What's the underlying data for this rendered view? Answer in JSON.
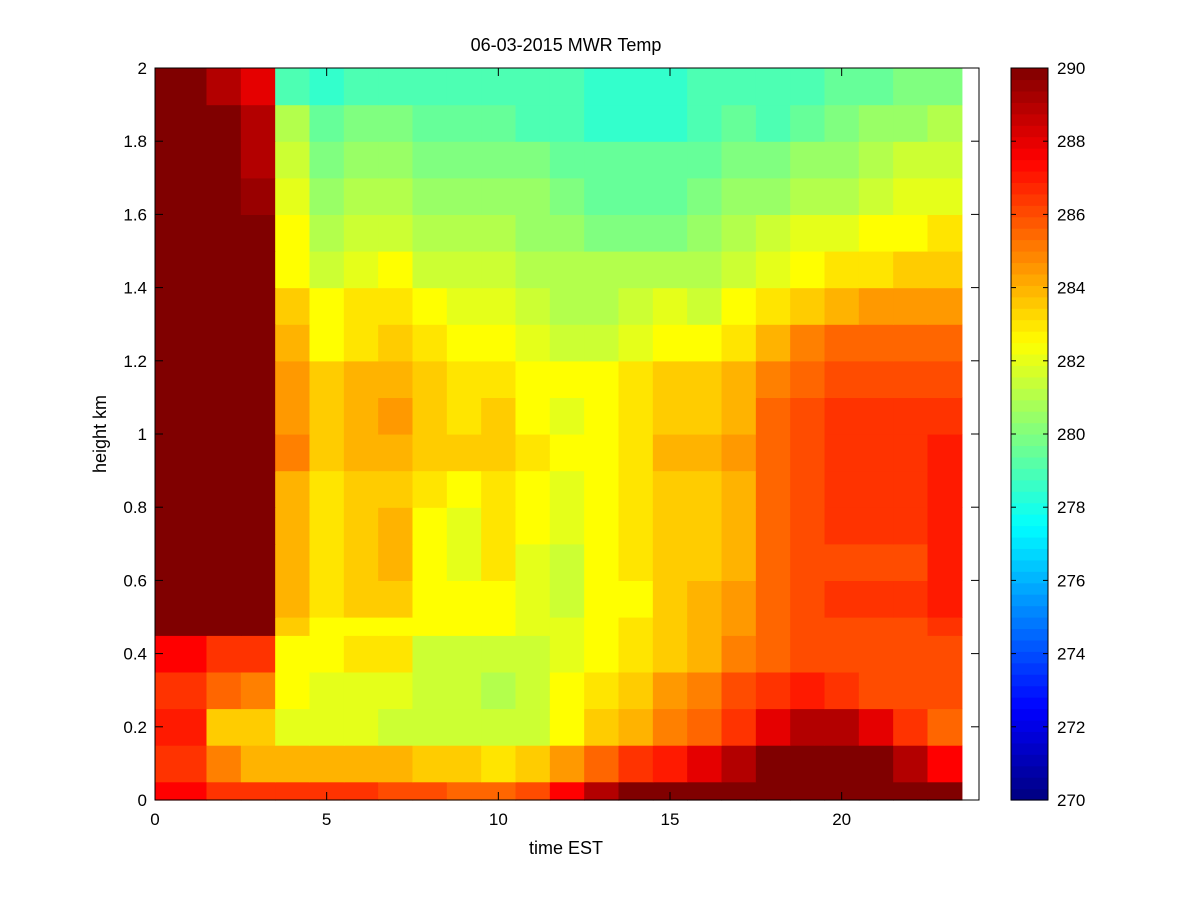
{
  "chart_data": {
    "type": "heatmap",
    "title": "06-03-2015 MWR Temp",
    "xlabel": "time EST",
    "ylabel": "height km",
    "xlim": [
      0,
      24
    ],
    "ylim": [
      0,
      2
    ],
    "colorbar": {
      "min": 270,
      "max": 290,
      "colormap": "jet",
      "ticks": [
        270,
        272,
        274,
        276,
        278,
        280,
        282,
        284,
        286,
        288,
        290
      ],
      "tick_labels": [
        "270",
        "272",
        "274",
        "276",
        "278",
        "280",
        "282",
        "284",
        "286",
        "288",
        "290"
      ]
    },
    "x_ticks": [
      0,
      5,
      10,
      15,
      20
    ],
    "x_tick_labels": [
      "0",
      "5",
      "10",
      "15",
      "20"
    ],
    "y_ticks": [
      0,
      0.2,
      0.4,
      0.6,
      0.8,
      1,
      1.2,
      1.4,
      1.6,
      1.8,
      2
    ],
    "y_tick_labels": [
      "0",
      "0.2",
      "0.4",
      "0.6",
      "0.8",
      "1",
      "1.2",
      "1.4",
      "1.6",
      "1.8",
      "2"
    ],
    "x_edges": [
      0,
      1.5,
      2.5,
      3.5,
      4.5,
      5.5,
      6.5,
      7.5,
      8.5,
      9.5,
      10.5,
      11.5,
      12.5,
      13.5,
      14.5,
      15.5,
      16.5,
      17.5,
      18.5,
      19.5,
      20.5,
      21.5,
      22.5,
      23.5
    ],
    "y_edges": [
      0,
      0.05,
      0.15,
      0.25,
      0.35,
      0.45,
      0.5,
      0.6,
      0.7,
      0.8,
      0.9,
      1.0,
      1.1,
      1.2,
      1.3,
      1.4,
      1.5,
      1.6,
      1.7,
      1.8,
      1.9,
      2.0
    ],
    "z": [
      [
        287.5,
        286.5,
        286.5,
        286.5,
        286.5,
        286.5,
        286,
        286,
        285.5,
        285.5,
        286,
        287.5,
        289,
        290,
        290,
        290,
        290,
        290,
        290,
        290,
        290,
        290,
        290
      ],
      [
        286.5,
        285,
        284,
        284,
        284,
        284,
        284,
        283.5,
        283.5,
        283,
        283.5,
        284.5,
        285.5,
        286.5,
        287,
        288,
        289,
        290,
        290,
        290,
        290,
        289,
        287.5
      ],
      [
        287,
        283.5,
        283.5,
        282,
        282,
        282,
        281.5,
        281.5,
        281.5,
        281.5,
        281.5,
        282.5,
        283.5,
        284,
        285,
        285.5,
        286.5,
        288,
        289,
        289,
        288,
        286.5,
        285.5
      ],
      [
        286.5,
        285.5,
        285,
        282.5,
        282,
        282,
        282,
        281.5,
        281.5,
        281,
        281.5,
        282.5,
        283,
        283.5,
        284.5,
        285,
        286,
        286.5,
        287,
        286.5,
        286,
        286,
        286
      ],
      [
        287.5,
        286.5,
        286.5,
        282.5,
        282.5,
        283,
        283,
        281.5,
        281.5,
        281.5,
        281.5,
        282,
        282.5,
        283,
        283.5,
        284,
        285,
        285.5,
        286,
        286,
        286,
        286,
        286
      ],
      [
        290,
        290,
        290,
        283.5,
        282.5,
        282.5,
        282.5,
        282.5,
        282.5,
        282.5,
        282,
        282,
        282.5,
        283,
        283.5,
        284,
        284.5,
        285.5,
        286,
        286,
        286,
        286,
        286.5
      ],
      [
        290,
        290,
        290,
        284,
        283,
        283.5,
        283.5,
        282.5,
        282.5,
        282.5,
        282,
        281.5,
        282.5,
        282.5,
        283.5,
        284,
        284.5,
        285.5,
        286,
        286.5,
        286.5,
        286.5,
        287
      ],
      [
        290,
        290,
        290,
        284,
        283,
        283.5,
        284,
        282.5,
        282,
        283,
        282,
        281.5,
        282.5,
        283,
        283.5,
        283.5,
        284,
        285.5,
        286,
        286,
        286,
        286,
        287
      ],
      [
        290,
        290,
        290,
        284,
        283,
        283.5,
        284,
        282.5,
        282,
        283,
        282.5,
        282,
        282.5,
        283,
        283.5,
        283.5,
        284,
        285.5,
        286,
        286.5,
        286.5,
        286.5,
        287
      ],
      [
        290,
        290,
        290,
        284,
        283,
        283.5,
        283.5,
        283,
        282.5,
        283,
        282.5,
        282,
        282.5,
        283,
        283.5,
        283.5,
        284,
        285.5,
        286,
        286.5,
        286.5,
        286.5,
        287
      ],
      [
        290,
        290,
        290,
        285,
        283.5,
        284,
        284,
        283.5,
        283.5,
        283.5,
        283,
        282.5,
        282.5,
        283,
        284,
        284,
        284.5,
        285.5,
        286,
        286.5,
        286.5,
        286.5,
        287
      ],
      [
        290,
        290,
        290,
        284.5,
        283.5,
        284,
        284.5,
        283.5,
        283,
        283.5,
        282.5,
        282,
        282.5,
        283,
        283.5,
        283.5,
        284,
        285.5,
        286,
        286.5,
        286.5,
        286.5,
        286.5
      ],
      [
        290,
        290,
        290,
        284.5,
        283.5,
        284,
        284,
        283.5,
        283,
        283,
        282.5,
        282.5,
        282.5,
        283,
        283.5,
        283.5,
        284,
        285,
        285.5,
        286,
        286,
        286,
        286
      ],
      [
        290,
        290,
        290,
        284,
        282.5,
        283,
        283.5,
        283,
        282.5,
        282.5,
        282,
        281.5,
        281.5,
        282,
        282.5,
        282.5,
        283,
        284,
        285,
        285.5,
        285.5,
        285.5,
        285.5
      ],
      [
        290,
        290,
        290,
        283.5,
        282.5,
        283,
        283,
        282.5,
        282,
        282,
        281.5,
        281,
        281,
        281.5,
        282,
        281.5,
        282.5,
        283,
        283.5,
        284,
        284.5,
        284.5,
        284.5
      ],
      [
        290,
        290,
        290,
        282.5,
        281.5,
        282,
        282.5,
        281.5,
        281.5,
        281.5,
        281,
        281,
        281,
        281,
        281,
        281,
        281.5,
        282,
        282.5,
        283,
        283,
        283.5,
        283.5
      ],
      [
        290,
        290,
        290,
        282.5,
        281,
        281.5,
        281.5,
        281,
        281,
        281,
        280.5,
        280.5,
        280,
        280,
        280,
        280.5,
        281,
        281.5,
        282,
        282,
        282.5,
        282.5,
        283
      ],
      [
        290,
        290,
        289.5,
        282,
        280.5,
        281,
        281,
        280.5,
        280.5,
        280.5,
        280.5,
        280,
        279.5,
        279.5,
        279.5,
        280,
        280.5,
        280.5,
        281,
        281,
        281.5,
        282,
        282
      ],
      [
        290,
        290,
        289,
        281.5,
        280,
        280.5,
        280.5,
        280,
        280,
        280,
        280,
        279.5,
        279.5,
        279.5,
        279.5,
        279.5,
        280,
        280,
        280.5,
        280.5,
        281,
        281.5,
        281.5
      ],
      [
        290,
        290,
        289,
        281,
        279.5,
        280,
        280,
        279.5,
        279.5,
        279.5,
        279,
        279,
        278.5,
        278.5,
        278.5,
        279,
        279.5,
        279,
        279.5,
        280,
        280.5,
        280.5,
        281
      ],
      [
        290,
        289,
        288,
        279,
        278.5,
        279,
        279,
        279,
        279,
        279,
        279,
        279,
        278.5,
        278.5,
        278.5,
        279,
        279,
        279,
        279,
        279.5,
        279.5,
        280,
        280
      ]
    ]
  }
}
